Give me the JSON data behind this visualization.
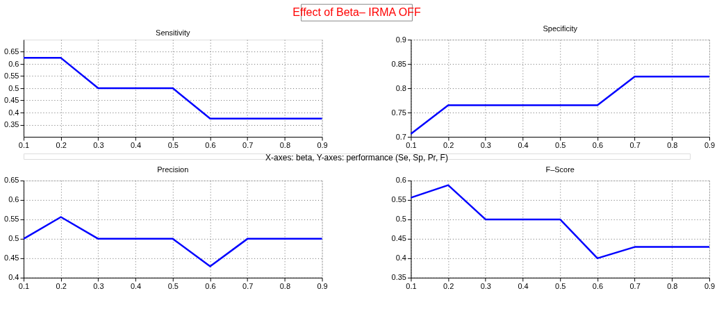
{
  "chart_data": [
    {
      "type": "line",
      "title": "Sensitivity",
      "annotations": [
        "Effect of Beta– IRMA OFF",
        "X-axes: beta, Y-axes: performance (Se, Sp, Pr, F)"
      ],
      "x": [
        0.1,
        0.2,
        0.3,
        0.4,
        0.5,
        0.6,
        0.7,
        0.8,
        0.9
      ],
      "series": [
        {
          "color": "#0000ff",
          "values": [
            0.625,
            0.625,
            0.5,
            0.5,
            0.5,
            0.375,
            0.375,
            0.375,
            0.375
          ]
        }
      ],
      "xlim": [
        0.1,
        0.9
      ],
      "xticks": [
        0.1,
        0.2,
        0.3,
        0.4,
        0.5,
        0.6,
        0.7,
        0.8,
        0.9
      ],
      "ylim": [
        0.3,
        0.7
      ],
      "yticks": [
        0.35,
        0.4,
        0.45,
        0.5,
        0.55,
        0.6,
        0.65
      ],
      "grid": true,
      "line_style": "solid"
    },
    {
      "type": "line",
      "title": "Specificity",
      "x": [
        0.1,
        0.2,
        0.3,
        0.4,
        0.5,
        0.6,
        0.7,
        0.8,
        0.9
      ],
      "series": [
        {
          "color": "#0000ff",
          "values": [
            0.706,
            0.765,
            0.765,
            0.765,
            0.765,
            0.765,
            0.824,
            0.824,
            0.824
          ]
        }
      ],
      "xlim": [
        0.1,
        0.9
      ],
      "xticks": [
        0.1,
        0.2,
        0.3,
        0.4,
        0.5,
        0.6,
        0.7,
        0.8,
        0.9
      ],
      "ylim": [
        0.7,
        0.9
      ],
      "yticks": [
        0.7,
        0.75,
        0.8,
        0.85,
        0.9
      ],
      "grid": true,
      "line_style": "solid"
    },
    {
      "type": "line",
      "title": "Precision",
      "x": [
        0.1,
        0.2,
        0.3,
        0.4,
        0.5,
        0.6,
        0.7,
        0.8,
        0.9
      ],
      "series": [
        {
          "color": "#0000ff",
          "values": [
            0.5,
            0.556,
            0.5,
            0.5,
            0.5,
            0.429,
            0.5,
            0.5,
            0.5
          ]
        }
      ],
      "xlim": [
        0.1,
        0.9
      ],
      "xticks": [
        0.1,
        0.2,
        0.3,
        0.4,
        0.5,
        0.6,
        0.7,
        0.8,
        0.9
      ],
      "ylim": [
        0.4,
        0.65
      ],
      "yticks": [
        0.4,
        0.45,
        0.5,
        0.55,
        0.6,
        0.65
      ],
      "grid": true,
      "line_style": "solid"
    },
    {
      "type": "line",
      "title": "F–Score",
      "x": [
        0.1,
        0.2,
        0.3,
        0.4,
        0.5,
        0.6,
        0.7,
        0.8,
        0.9
      ],
      "series": [
        {
          "color": "#0000ff",
          "values": [
            0.556,
            0.588,
            0.5,
            0.5,
            0.5,
            0.4,
            0.429,
            0.429,
            0.429
          ]
        }
      ],
      "xlim": [
        0.1,
        0.9
      ],
      "xticks": [
        0.1,
        0.2,
        0.3,
        0.4,
        0.5,
        0.6,
        0.7,
        0.8,
        0.9
      ],
      "ylim": [
        0.35,
        0.6
      ],
      "yticks": [
        0.35,
        0.4,
        0.45,
        0.5,
        0.55,
        0.6
      ],
      "grid": true,
      "line_style": "solid"
    }
  ]
}
